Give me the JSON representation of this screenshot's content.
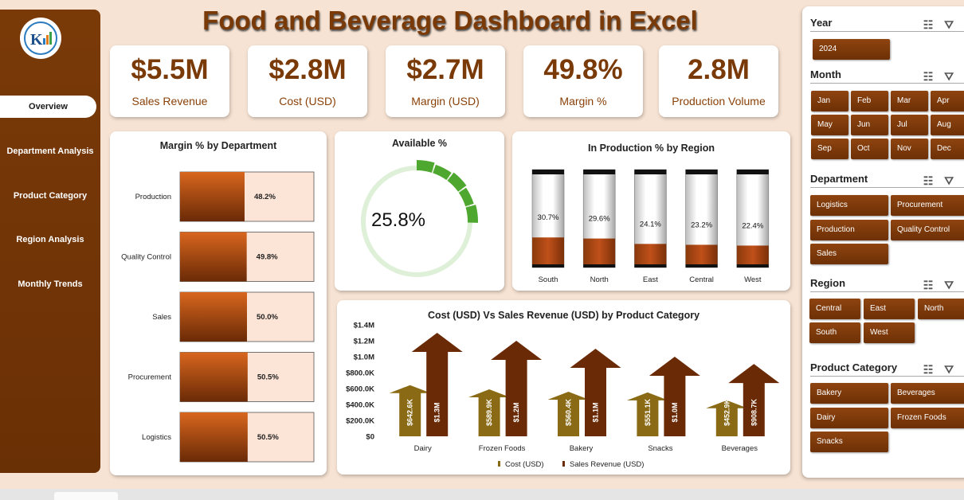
{
  "app": {
    "title": "Food and Beverage Dashboard in Excel"
  },
  "sidebar": {
    "items": [
      {
        "label": "Overview",
        "active": true
      },
      {
        "label": "Department Analysis",
        "active": false
      },
      {
        "label": "Product Category",
        "active": false
      },
      {
        "label": "Region Analysis",
        "active": false
      },
      {
        "label": "Monthly Trends",
        "active": false
      }
    ]
  },
  "kpis": [
    {
      "value": "$5.5M",
      "label": "Sales Revenue"
    },
    {
      "value": "$2.8M",
      "label": "Cost (USD)"
    },
    {
      "value": "$2.7M",
      "label": "Margin (USD)"
    },
    {
      "value": "49.8%",
      "label": "Margin %"
    },
    {
      "value": "2.8M",
      "label": "Production Volume"
    }
  ],
  "colors": {
    "brand": "#7a3a08",
    "bar_fill": "#c0501a",
    "bar_bg": "#fce4d6",
    "donut": "#4ea72e",
    "donut_track": "#dff0d8"
  },
  "slicers": {
    "year": {
      "title": "Year",
      "options": [
        "2024"
      ]
    },
    "month": {
      "title": "Month",
      "options": [
        "Jan",
        "Feb",
        "Mar",
        "Apr",
        "May",
        "Jun",
        "Jul",
        "Aug",
        "Sep",
        "Oct",
        "Nov",
        "Dec"
      ]
    },
    "department": {
      "title": "Department",
      "options": [
        "Logistics",
        "Procurement",
        "Production",
        "Quality Control",
        "Sales"
      ]
    },
    "region": {
      "title": "Region",
      "options": [
        "Central",
        "East",
        "North",
        "South",
        "West"
      ]
    },
    "product_category": {
      "title": "Product Category",
      "options": [
        "Bakery",
        "Beverages",
        "Dairy",
        "Frozen Foods",
        "Snacks"
      ]
    }
  },
  "chart_data": [
    {
      "type": "bar",
      "title": "Margin % by Department",
      "categories": [
        "Production",
        "Quality Control",
        "Sales",
        "Procurement",
        "Logistics"
      ],
      "values": [
        48.2,
        49.8,
        50.0,
        50.5,
        50.5
      ],
      "labels": [
        "48.2%",
        "49.8%",
        "50.0%",
        "50.5%",
        "50.5%"
      ],
      "xlim": [
        0,
        100
      ]
    },
    {
      "type": "pie",
      "title": "Available %",
      "values": [
        25.8
      ],
      "label": "25.8%"
    },
    {
      "type": "bar",
      "title": "In Production % by Region",
      "categories": [
        "South",
        "North",
        "East",
        "Central",
        "West"
      ],
      "values": [
        30.7,
        29.6,
        24.1,
        23.2,
        22.4
      ],
      "labels": [
        "30.7%",
        "29.6%",
        "24.1%",
        "23.2%",
        "22.4%"
      ],
      "ylim": [
        0,
        100
      ]
    },
    {
      "type": "bar",
      "title": "Cost (USD) Vs Sales Revenue (USD) by Product Category",
      "categories": [
        "Dairy",
        "Frozen Foods",
        "Bakery",
        "Snacks",
        "Beverages"
      ],
      "series": [
        {
          "name": "Cost (USD)",
          "values": [
            642600,
            589900,
            560400,
            551100,
            452900
          ],
          "labels": [
            "$642.6K",
            "$589.9K",
            "$560.4K",
            "$551.1K",
            "$452.9K"
          ],
          "color": "#8a6a14"
        },
        {
          "name": "Sales Revenue (USD)",
          "values": [
            1300000,
            1200000,
            1100000,
            1000000,
            908700
          ],
          "labels": [
            "$1.3M",
            "$1.2M",
            "$1.1M",
            "$1.0M",
            "$908.7K"
          ],
          "color": "#6a2a06"
        }
      ],
      "yticks": [
        "$0",
        "$200.0K",
        "$400.0K",
        "$600.0K",
        "$800.0K",
        "$1.0M",
        "$1.2M",
        "$1.4M"
      ],
      "ylim": [
        0,
        1400000
      ],
      "legend": "bottom"
    }
  ]
}
